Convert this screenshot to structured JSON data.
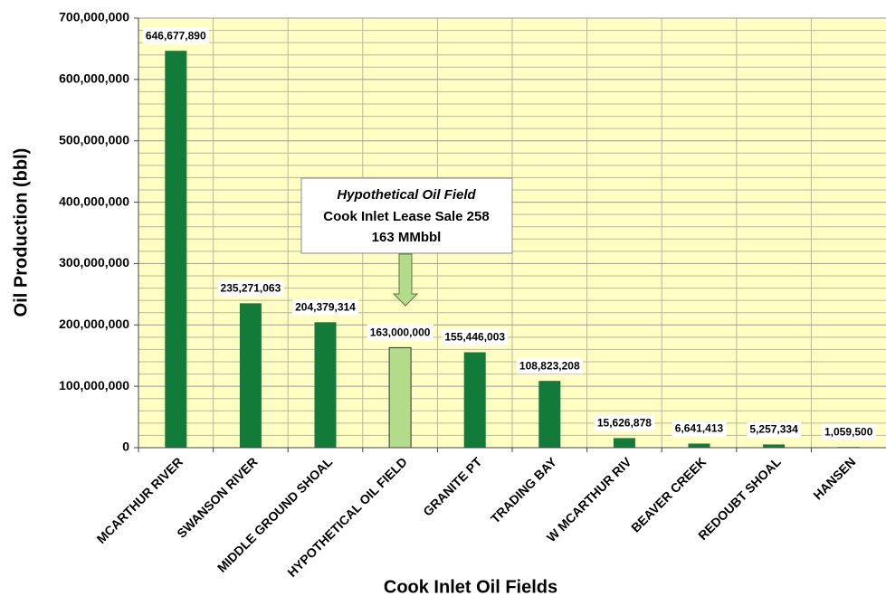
{
  "chart_data": {
    "type": "bar",
    "x_label": "Cook Inlet Oil Fields",
    "y_label": "Oil Production (bbl)",
    "categories": [
      "MCARTHUR RIVER",
      "SWANSON RIVER",
      "MIDDLE GROUND SHOAL",
      "HYPOTHETICAL OIL FIELD",
      "GRANITE PT",
      "TRADING BAY",
      "W MCARTHUR RIV",
      "BEAVER CREEK",
      "REDOUBT SHOAL",
      "HANSEN"
    ],
    "values": [
      646677890,
      235271063,
      204379314,
      163000000,
      155446003,
      108823208,
      15626878,
      6641413,
      5257334,
      1059500
    ],
    "value_labels": [
      "646,677,890",
      "235,271,063",
      "204,379,314",
      "163,000,000",
      "155,446,003",
      "108,823,208",
      "15,626,878",
      "6,641,413",
      "5,257,334",
      "1,059,500"
    ],
    "colors": [
      "#127b3a",
      "#127b3a",
      "#127b3a",
      "#b3dc8a",
      "#127b3a",
      "#127b3a",
      "#127b3a",
      "#127b3a",
      "#127b3a",
      "#127b3a"
    ],
    "ylim": [
      0,
      700000000
    ],
    "yticks": [
      0,
      {
        "value": 100000000,
        "label": "100,000,000"
      },
      {
        "value": 200000000,
        "label": "200,000,000"
      },
      {
        "value": 300000000,
        "label": "300,000,000"
      },
      {
        "value": 400000000,
        "label": "400,000,000"
      },
      {
        "value": 500000000,
        "label": "500,000,000"
      },
      {
        "value": 600000000,
        "label": "600,000,000"
      },
      {
        "value": 700000000,
        "label": "700,000,000"
      }
    ],
    "grid": true,
    "annotation": {
      "lines": [
        "Hypothetical Oil Field",
        "Cook Inlet Lease Sale 258",
        "163 MMbbl"
      ]
    }
  }
}
